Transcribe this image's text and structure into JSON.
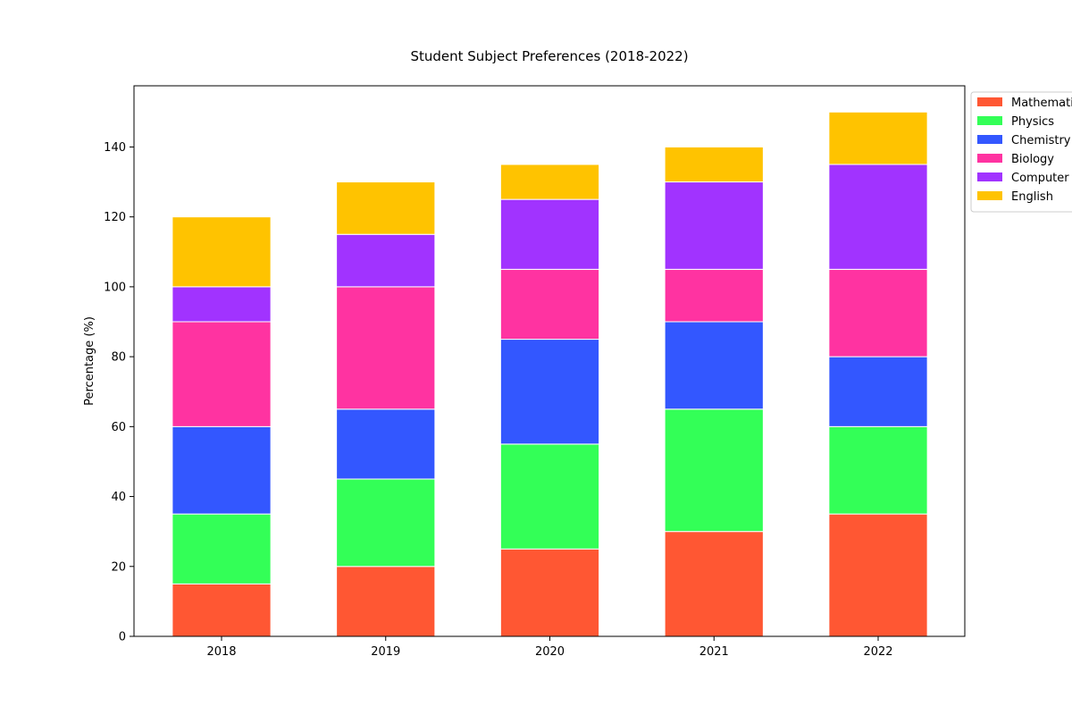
{
  "chart_data": {
    "type": "bar",
    "stacked": true,
    "title": "Student Subject Preferences (2018-2022)",
    "xlabel": "",
    "ylabel": "Percentage (%)",
    "categories": [
      "2018",
      "2019",
      "2020",
      "2021",
      "2022"
    ],
    "ylim": [
      0,
      157.5
    ],
    "yticks": [
      0,
      20,
      40,
      60,
      80,
      100,
      120,
      140
    ],
    "grid": false,
    "legend_position": "outside-top-right",
    "series": [
      {
        "name": "Mathematics",
        "color": "#ff5733",
        "values": [
          15,
          20,
          25,
          30,
          35
        ]
      },
      {
        "name": "Physics",
        "color": "#33ff57",
        "values": [
          20,
          25,
          30,
          35,
          25
        ]
      },
      {
        "name": "Chemistry",
        "color": "#3357ff",
        "values": [
          25,
          20,
          30,
          25,
          20
        ]
      },
      {
        "name": "Biology",
        "color": "#ff33a1",
        "values": [
          30,
          35,
          20,
          15,
          25
        ]
      },
      {
        "name": "Computer Science",
        "color": "#a133ff",
        "values": [
          10,
          15,
          20,
          25,
          30
        ]
      },
      {
        "name": "English",
        "color": "#ffc300",
        "values": [
          20,
          15,
          10,
          10,
          15
        ]
      }
    ]
  }
}
